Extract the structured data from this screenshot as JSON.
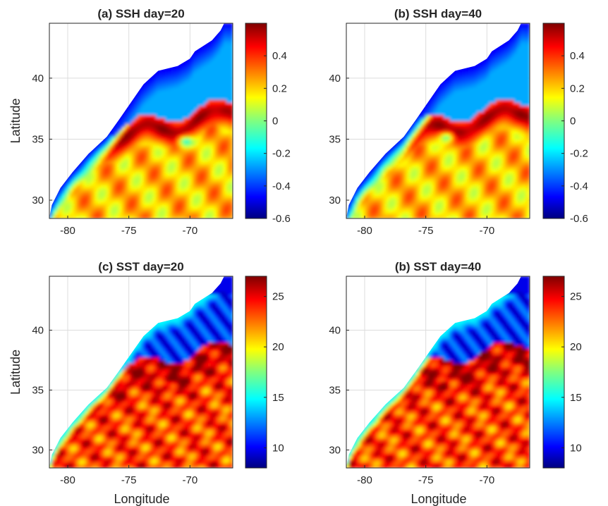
{
  "figure": {
    "xlabel": "Longitude",
    "ylabel": "Latitude"
  },
  "chart_data": [
    {
      "type": "heatmap",
      "title": "(a) SSH day=20",
      "variable": "SSH",
      "day": 20,
      "xlabel": "",
      "ylabel": "Latitude",
      "xlim": [
        -81.5,
        -66.5
      ],
      "ylim": [
        28.5,
        44.5
      ],
      "xticks": [
        -80,
        -75,
        -70
      ],
      "yticks": [
        30,
        35,
        40
      ],
      "grid": true,
      "colormap": "jet",
      "clim": [
        -0.6,
        0.6
      ],
      "colorbar_ticks": [
        -0.6,
        -0.4,
        -0.2,
        0,
        0.2,
        0.4
      ],
      "colorbar_ticklabels": [
        "-0.6",
        "-0.4",
        "-0.2",
        "0",
        "0.2",
        "0.4"
      ],
      "features": {
        "gulf_stream_lat": 37.2,
        "ring_core": [
          -70.4,
          34.9
        ],
        "shelf_value": -0.45
      }
    },
    {
      "type": "heatmap",
      "title": "(b) SSH day=40",
      "variable": "SSH",
      "day": 40,
      "xlabel": "",
      "ylabel": "",
      "xlim": [
        -81.5,
        -66.5
      ],
      "ylim": [
        28.5,
        44.5
      ],
      "xticks": [
        -80,
        -75,
        -70
      ],
      "yticks": [
        30,
        35,
        40
      ],
      "grid": true,
      "colormap": "jet",
      "clim": [
        -0.6,
        0.6
      ],
      "colorbar_ticks": [
        -0.6,
        -0.4,
        -0.2,
        0,
        0.2,
        0.4
      ],
      "colorbar_ticklabels": [
        "-0.6",
        "-0.4",
        "-0.2",
        "0",
        "0.2",
        "0.4"
      ],
      "features": {
        "gulf_stream_lat": 37.4,
        "ring_core": [
          -73.2,
          35.2
        ],
        "shelf_value": -0.45
      }
    },
    {
      "type": "heatmap",
      "title": "(c) SST day=20",
      "variable": "SST",
      "day": 20,
      "xlabel": "Longitude",
      "ylabel": "Latitude",
      "xlim": [
        -81.5,
        -66.5
      ],
      "ylim": [
        28.5,
        44.5
      ],
      "xticks": [
        -80,
        -75,
        -70
      ],
      "yticks": [
        30,
        35,
        40
      ],
      "grid": true,
      "colormap": "jet",
      "clim": [
        8,
        27
      ],
      "colorbar_ticks": [
        10,
        15,
        20,
        25
      ],
      "colorbar_ticklabels": [
        "10",
        "15",
        "20",
        "25"
      ],
      "features": {
        "gulf_stream_lat": 37.6,
        "ring_core": [
          -71.8,
          35.2
        ],
        "shelf_value": 11
      }
    },
    {
      "type": "heatmap",
      "title": "(b) SST day=40",
      "variable": "SST",
      "day": 40,
      "xlabel": "Longitude",
      "ylabel": "",
      "xlim": [
        -81.5,
        -66.5
      ],
      "ylim": [
        28.5,
        44.5
      ],
      "xticks": [
        -80,
        -75,
        -70
      ],
      "yticks": [
        30,
        35,
        40
      ],
      "grid": true,
      "colormap": "jet",
      "clim": [
        8,
        27
      ],
      "colorbar_ticks": [
        10,
        15,
        20,
        25
      ],
      "colorbar_ticklabels": [
        "10",
        "15",
        "20",
        "25"
      ],
      "features": {
        "gulf_stream_lat": 37.8,
        "ring_core": [
          -73.4,
          35.4
        ],
        "shelf_value": 11
      }
    }
  ]
}
